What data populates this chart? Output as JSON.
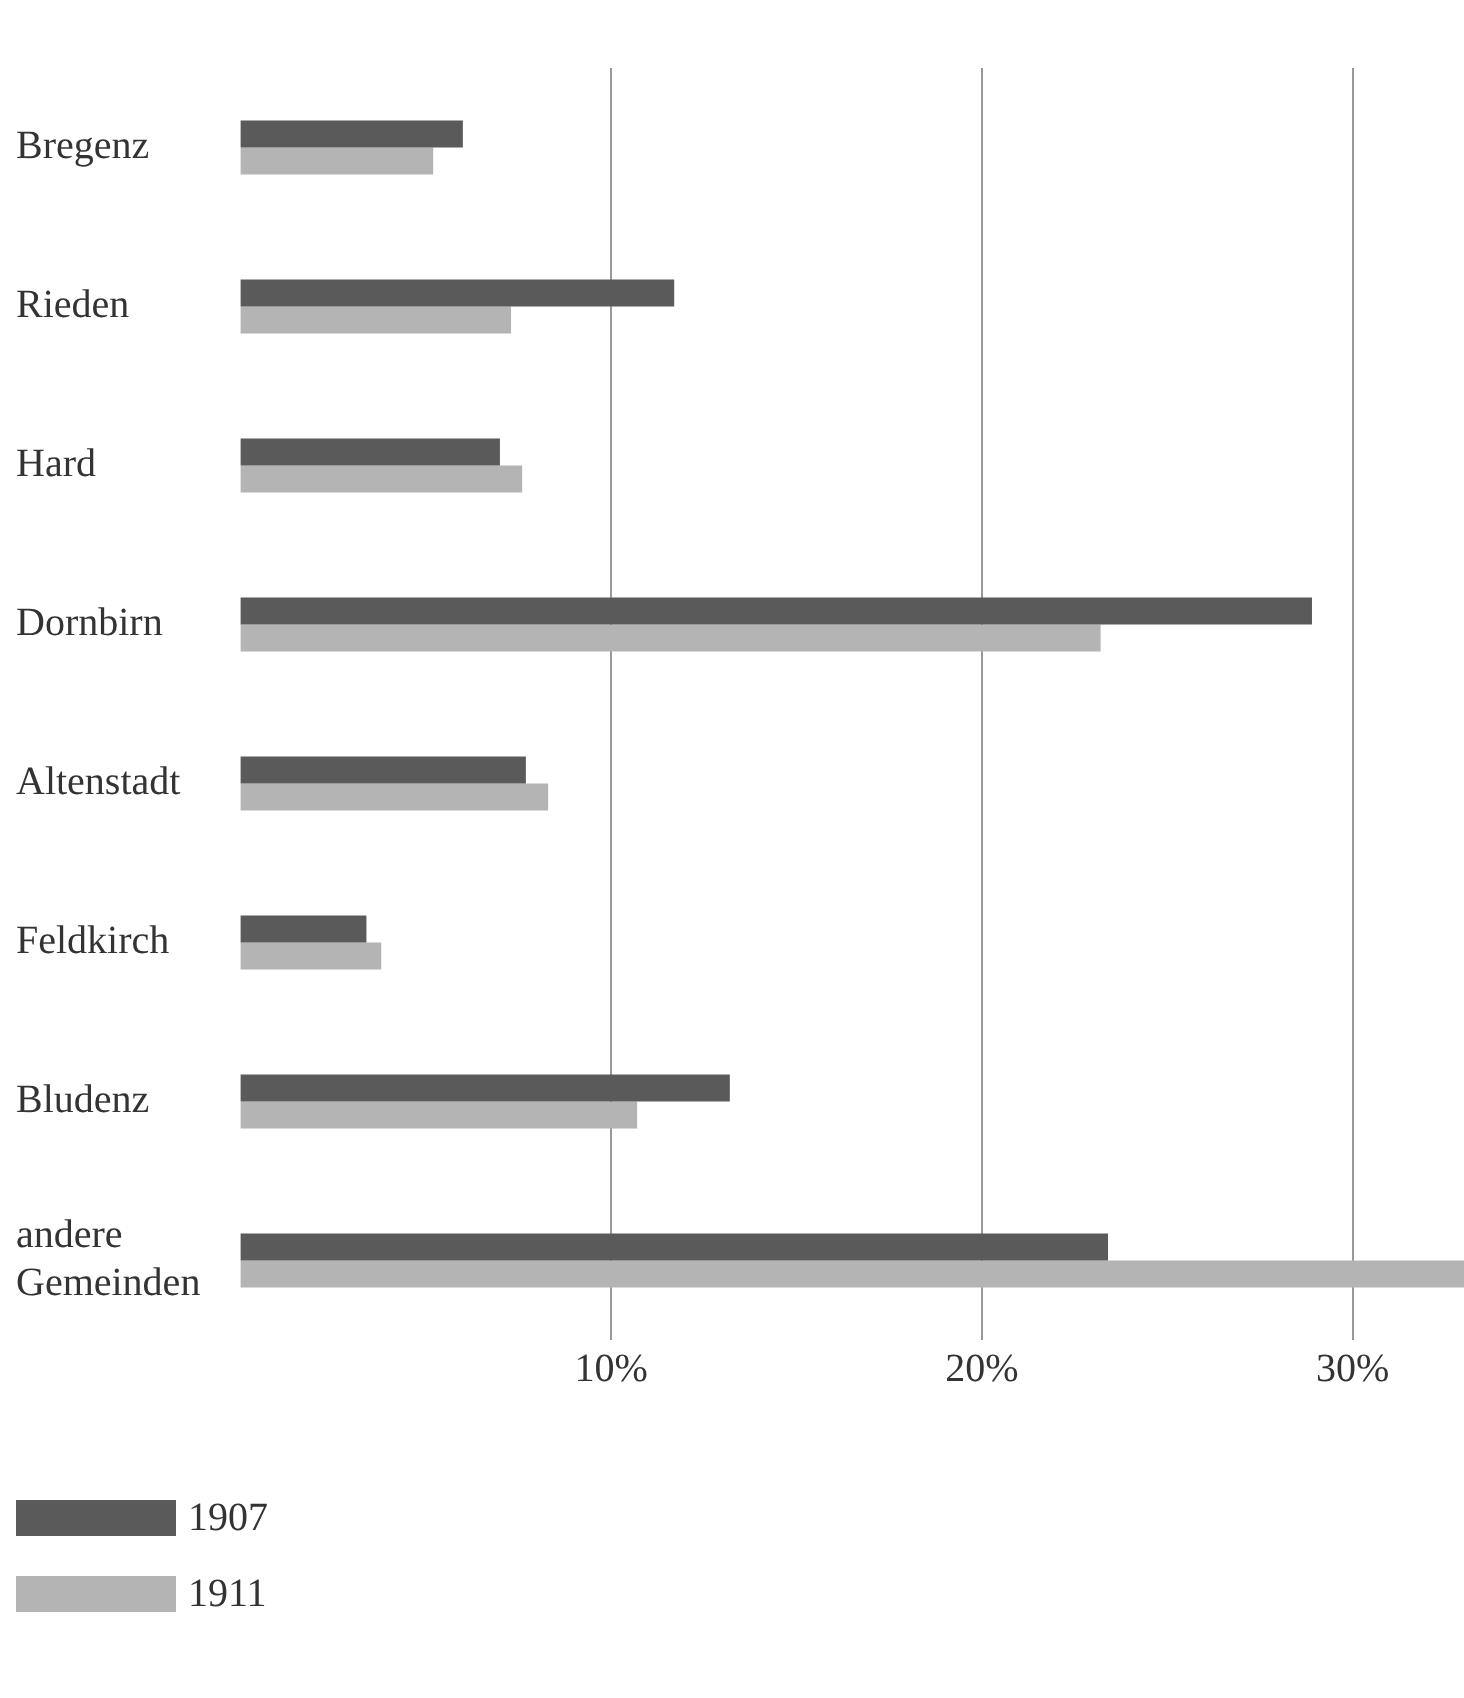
{
  "chart_data": {
    "type": "bar",
    "orientation": "horizontal",
    "categories": [
      "Bregenz",
      "Rieden",
      "Hard",
      "Dornbirn",
      "Altenstadt",
      "Feldkirch",
      "Bludenz",
      "andere Gemeinden"
    ],
    "series": [
      {
        "name": "1907",
        "color": "#5a5a5a",
        "values": [
          6.0,
          11.7,
          7.0,
          28.9,
          7.7,
          3.4,
          13.2,
          23.4
        ]
      },
      {
        "name": "1911",
        "color": "#b4b4b4",
        "values": [
          5.2,
          7.3,
          7.6,
          23.2,
          8.3,
          3.8,
          10.7,
          33.0
        ]
      }
    ],
    "xlim": [
      0,
      33
    ],
    "xticks": [
      {
        "value": 10,
        "label": "10%"
      },
      {
        "value": 20,
        "label": "20%"
      },
      {
        "value": 30,
        "label": "30%"
      }
    ],
    "grid": "x",
    "legend": "bottom left"
  }
}
